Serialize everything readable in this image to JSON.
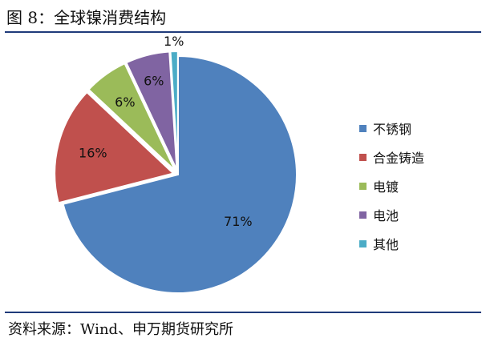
{
  "figure": {
    "title": "图 8：全球镍消费结构",
    "source": "资料来源：Wind、申万期货研究所"
  },
  "chart_data": {
    "type": "pie",
    "categories": [
      "不锈钢",
      "合金铸造",
      "电镀",
      "电池",
      "其他"
    ],
    "values": [
      71,
      16,
      6,
      6,
      1
    ],
    "labels": [
      "71%",
      "16%",
      "6%",
      "6%",
      "1%"
    ],
    "colors": [
      "#4f81bd",
      "#c0504d",
      "#9bbb59",
      "#8064a2",
      "#4bacc6"
    ],
    "legend_position": "right",
    "start": "12 o'clock, clockwise"
  }
}
